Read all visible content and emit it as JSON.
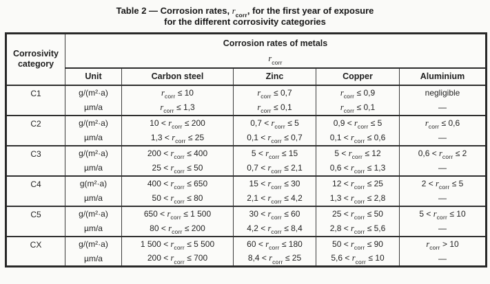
{
  "title": {
    "line1": "Table 2 — Corrosion rates, {r}, for the first year of exposure",
    "line2": "for the different corrosivity categories"
  },
  "symbol": {
    "base": "r",
    "subscript": "corr"
  },
  "table": {
    "corrosivity_header": "Corrosivity category",
    "group_header": "Corrosion rates of metals",
    "group_symbol": "{r}",
    "columns": {
      "unit": "Unit",
      "carbon_steel": "Carbon steel",
      "zinc": "Zinc",
      "copper": "Copper",
      "aluminium": "Aluminium"
    },
    "rows": [
      {
        "category": "C1",
        "sub": [
          {
            "unit": "g/(m²·a)",
            "carbon_steel": "{r} ≤ 10",
            "zinc": "{r} ≤ 0,7",
            "copper": "{r} ≤ 0,9",
            "aluminium": "negligible"
          },
          {
            "unit": "µm/a",
            "carbon_steel": "{r} ≤ 1,3",
            "zinc": "{r} ≤ 0,1",
            "copper": "{r} ≤ 0,1",
            "aluminium": "—"
          }
        ]
      },
      {
        "category": "C2",
        "sub": [
          {
            "unit": "g/(m²·a)",
            "carbon_steel": "10 < {r} ≤ 200",
            "zinc": "0,7 < {r} ≤ 5",
            "copper": "0,9 < {r} ≤ 5",
            "aluminium": "{r} ≤ 0,6"
          },
          {
            "unit": "µm/a",
            "carbon_steel": "1,3 < {r} ≤ 25",
            "zinc": "0,1 < {r} ≤ 0,7",
            "copper": "0,1 < {r} ≤ 0,6",
            "aluminium": "—"
          }
        ]
      },
      {
        "category": "C3",
        "sub": [
          {
            "unit": "g/(m²·a)",
            "carbon_steel": "200 < {r} ≤ 400",
            "zinc": "5 < {r} ≤ 15",
            "copper": "5 < {r} ≤ 12",
            "aluminium": "0,6 < {r} ≤ 2"
          },
          {
            "unit": "µm/a",
            "carbon_steel": "25 < {r} ≤ 50",
            "zinc": "0,7 < {r} ≤ 2,1",
            "copper": "0,6 < {r} ≤ 1,3",
            "aluminium": "—"
          }
        ]
      },
      {
        "category": "C4",
        "sub": [
          {
            "unit": "g(m²·a)",
            "carbon_steel": "400 < {r} ≤ 650",
            "zinc": "15 < {r} ≤ 30",
            "copper": "12 < {r} ≤ 25",
            "aluminium": "2 < {r} ≤ 5"
          },
          {
            "unit": "µm/a",
            "carbon_steel": "50 < {r} ≤ 80",
            "zinc": "2,1 < {r} ≤ 4,2",
            "copper": "1,3 < {r} ≤ 2,8",
            "aluminium": "—"
          }
        ]
      },
      {
        "category": "C5",
        "sub": [
          {
            "unit": "g/(m²·a)",
            "carbon_steel": "650 < {r} ≤ 1 500",
            "zinc": "30 < {r} ≤ 60",
            "copper": "25 < {r} ≤ 50",
            "aluminium": "5 < {r} ≤ 10"
          },
          {
            "unit": "µm/a",
            "carbon_steel": "80 < {r} ≤ 200",
            "zinc": "4,2 < {r} ≤ 8,4",
            "copper": "2,8 < {r} ≤ 5,6",
            "aluminium": "—"
          }
        ]
      },
      {
        "category": "CX",
        "sub": [
          {
            "unit": "g/(m²·a)",
            "carbon_steel": "1 500 < {r} ≤ 5 500",
            "zinc": "60 < {r} ≤ 180",
            "copper": "50 < {r} ≤ 90",
            "aluminium": "{r} > 10"
          },
          {
            "unit": "µm/a",
            "carbon_steel": "200 < {r} ≤ 700",
            "zinc": "8,4 < {r} ≤ 25",
            "copper": "5,6 < {r} ≤ 10",
            "aluminium": "—"
          }
        ]
      }
    ]
  }
}
